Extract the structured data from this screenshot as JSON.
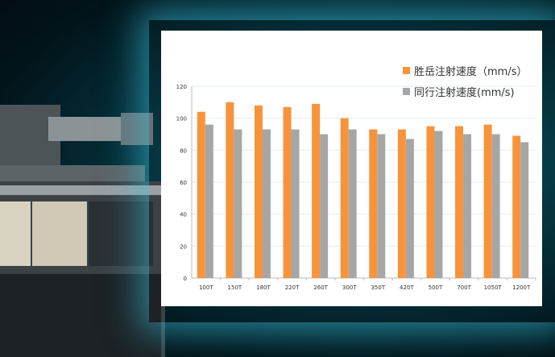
{
  "chart_data": {
    "type": "bar",
    "categories": [
      "100T",
      "150T",
      "180T",
      "220T",
      "260T",
      "300T",
      "350T",
      "420T",
      "500T",
      "700T",
      "1050T",
      "1200T"
    ],
    "series": [
      {
        "name": "胜岳注射速度（mm/s）",
        "color": "#f7943b",
        "values": [
          104,
          110,
          108,
          107,
          109,
          100,
          93,
          93,
          95,
          95,
          96,
          89
        ]
      },
      {
        "name": "同行注射速度(mm/s)",
        "color": "#a6a6a6",
        "values": [
          96,
          93,
          93,
          93,
          90,
          93,
          90,
          87,
          92,
          90,
          90,
          85
        ]
      }
    ],
    "ylim": [
      0,
      120
    ],
    "yticks": [
      0,
      20,
      40,
      60,
      80,
      100,
      120
    ],
    "grid": true,
    "legend": "top-right"
  }
}
